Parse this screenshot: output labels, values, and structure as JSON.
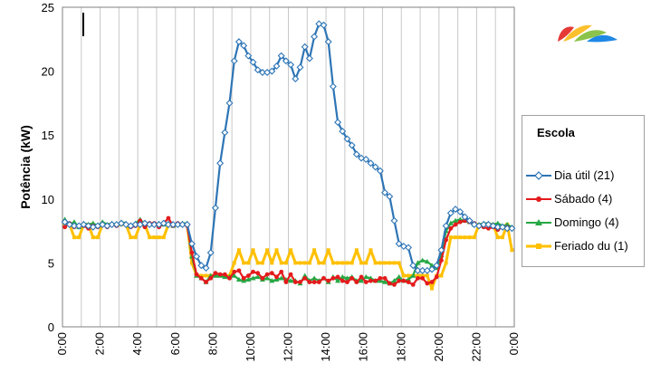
{
  "chart_data": {
    "type": "line",
    "ylabel": "Potência (kW)",
    "ylim": [
      0,
      25
    ],
    "yticks": [
      0,
      5,
      10,
      15,
      20,
      25
    ],
    "xlim": [
      0,
      24
    ],
    "xtick_labels": [
      "0:00",
      "2:00",
      "4:00",
      "6:00",
      "8:00",
      "10:00",
      "12:00",
      "14:00",
      "16:00",
      "18:00",
      "20:00",
      "22:00",
      "0:00"
    ],
    "grid": "vertical",
    "legend_title": "Escola",
    "legend_position": "right",
    "series": [
      {
        "name": "Dia útil (21)",
        "color": "#2e75b6",
        "marker": "diamond-open",
        "values": [
          8.2,
          8.0,
          7.9,
          7.9,
          8.0,
          7.9,
          7.8,
          7.9,
          8.0,
          7.9,
          8.0,
          8.0,
          8.1,
          8.0,
          7.9,
          8.0,
          8.0,
          8.1,
          8.0,
          8.0,
          8.0,
          8.1,
          8.0,
          8.0,
          8.0,
          8.0,
          8.0,
          6.5,
          5.5,
          4.8,
          4.6,
          5.8,
          9.3,
          12.8,
          15.2,
          17.5,
          20.8,
          22.3,
          22.0,
          21.2,
          20.7,
          20.1,
          19.9,
          19.9,
          20.0,
          20.4,
          21.2,
          20.8,
          20.5,
          19.4,
          20.3,
          21.9,
          21.0,
          22.7,
          23.7,
          23.6,
          22.3,
          18.8,
          16.0,
          15.3,
          14.7,
          14.2,
          13.5,
          13.2,
          13.1,
          12.8,
          12.5,
          12.2,
          10.5,
          10.2,
          8.3,
          6.5,
          6.3,
          6.2,
          4.8,
          4.4,
          4.4,
          4.4,
          4.5,
          4.8,
          6.0,
          7.9,
          8.9,
          9.2,
          9.0,
          8.6,
          8.3,
          8.0,
          7.9,
          8.0,
          8.0,
          7.9,
          7.8,
          7.8,
          7.7,
          7.7
        ]
      },
      {
        "name": "Sábado (4)",
        "color": "#e41a1c",
        "marker": "circle",
        "values": [
          7.8,
          8.1,
          7.8,
          7.9,
          7.9,
          7.7,
          7.9,
          7.8,
          8.0,
          7.8,
          8.0,
          7.9,
          8.1,
          8.0,
          7.8,
          7.9,
          8.3,
          7.8,
          8.1,
          8.1,
          7.8,
          8.1,
          8.5,
          7.9,
          8.1,
          8.0,
          7.9,
          5.8,
          4.1,
          3.8,
          3.5,
          3.8,
          4.2,
          4.1,
          4.1,
          3.8,
          4.3,
          4.4,
          3.8,
          4.0,
          4.3,
          4.2,
          3.8,
          4.1,
          4.2,
          3.9,
          4.3,
          3.5,
          4.1,
          3.5,
          3.5,
          3.8,
          3.5,
          3.5,
          3.5,
          3.8,
          3.6,
          3.8,
          3.9,
          3.6,
          3.5,
          3.8,
          3.5,
          3.9,
          3.5,
          3.6,
          3.6,
          3.8,
          3.8,
          3.4,
          3.3,
          3.6,
          3.6,
          3.5,
          3.3,
          3.8,
          3.8,
          3.4,
          3.5,
          3.9,
          5.2,
          6.8,
          7.7,
          8.0,
          8.2,
          8.3,
          8.2,
          8.1,
          7.9,
          7.8,
          7.7,
          7.8,
          7.6,
          7.8,
          7.8,
          7.7
        ]
      },
      {
        "name": "Domingo (4)",
        "color": "#27a844",
        "marker": "triangle",
        "values": [
          8.4,
          8.0,
          8.2,
          7.8,
          8.1,
          8.0,
          8.1,
          7.9,
          8.2,
          8.0,
          8.1,
          8.0,
          8.2,
          8.1,
          7.9,
          8.1,
          8.4,
          8.0,
          8.1,
          8.0,
          8.1,
          8.0,
          8.1,
          7.9,
          8.0,
          8.1,
          8.1,
          5.5,
          4.0,
          3.8,
          3.5,
          4.0,
          4.0,
          4.0,
          3.9,
          3.9,
          4.0,
          3.7,
          3.6,
          3.7,
          3.8,
          3.9,
          3.7,
          3.8,
          3.6,
          3.7,
          3.8,
          3.7,
          3.6,
          3.6,
          3.4,
          4.0,
          3.6,
          3.8,
          3.6,
          3.8,
          3.5,
          3.9,
          3.6,
          3.9,
          3.8,
          3.9,
          3.6,
          3.6,
          3.9,
          3.8,
          3.6,
          3.6,
          3.5,
          3.4,
          3.6,
          3.9,
          3.6,
          3.7,
          4.0,
          5.0,
          5.2,
          5.1,
          4.8,
          4.6,
          5.6,
          7.5,
          8.1,
          8.3,
          8.4,
          8.3,
          8.2,
          8.0,
          8.0,
          8.1,
          8.1,
          8.0,
          8.1,
          7.9,
          8.0,
          7.8
        ]
      },
      {
        "name": "Feriado du (1)",
        "color": "#ffc000",
        "marker": "square",
        "values": [
          8,
          8,
          7,
          7,
          8,
          8,
          7,
          7,
          8,
          8,
          8,
          8,
          8,
          8,
          7,
          7,
          8,
          8,
          7,
          7,
          7,
          7,
          8,
          8,
          8,
          8,
          8,
          5,
          4,
          4,
          4,
          4,
          4,
          4,
          4,
          4,
          5,
          6,
          5,
          5,
          6,
          5,
          5,
          6,
          5,
          6,
          5,
          5,
          6,
          5,
          5,
          5,
          5,
          6,
          5,
          5,
          6,
          5,
          5,
          5,
          5,
          5,
          6,
          5,
          5,
          6,
          5,
          5,
          5,
          5,
          5,
          5,
          4,
          4,
          4,
          4,
          4,
          4,
          3,
          4,
          4,
          5,
          7,
          7,
          7,
          7,
          7,
          7,
          8,
          8,
          8,
          8,
          7,
          7,
          8,
          6
        ]
      }
    ]
  }
}
